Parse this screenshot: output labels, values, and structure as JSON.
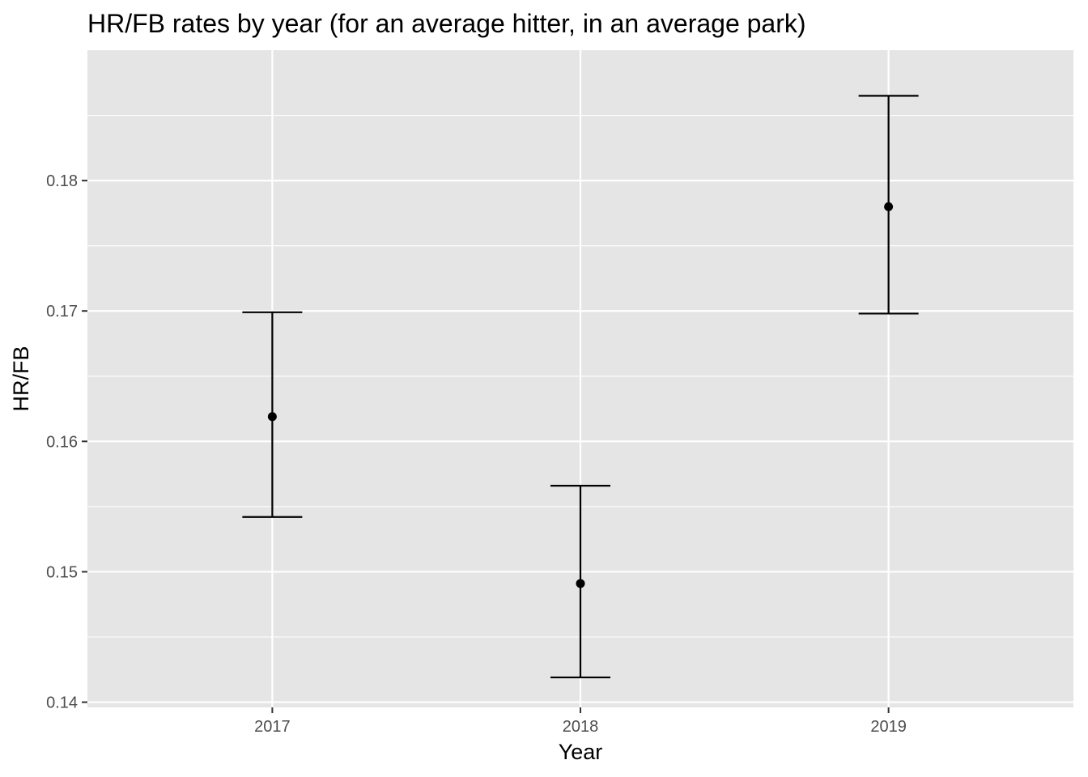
{
  "chart_data": {
    "type": "errorbar",
    "title": "HR/FB rates by year (for an average hitter, in an average park)",
    "xlabel": "Year",
    "ylabel": "HR/FB",
    "categories": [
      "2017",
      "2018",
      "2019"
    ],
    "series": [
      {
        "values": [
          0.1619,
          0.1491,
          0.178
        ],
        "lower": [
          0.1542,
          0.1419,
          0.1698
        ],
        "upper": [
          0.1699,
          0.1566,
          0.1865
        ]
      }
    ],
    "yticks": [
      0.14,
      0.15,
      0.16,
      0.17,
      0.18
    ],
    "ytick_labels": [
      "0.14",
      "0.15",
      "0.16",
      "0.17",
      "0.18"
    ],
    "ylim": [
      0.1396,
      0.19
    ],
    "grid": true,
    "legend": "none",
    "colors": {
      "panel_background": "#E5E5E5",
      "gridline": "#FFFFFF",
      "marks": "#000000",
      "tick_text": "#4D4D4D",
      "tick_mark": "#333333"
    }
  }
}
